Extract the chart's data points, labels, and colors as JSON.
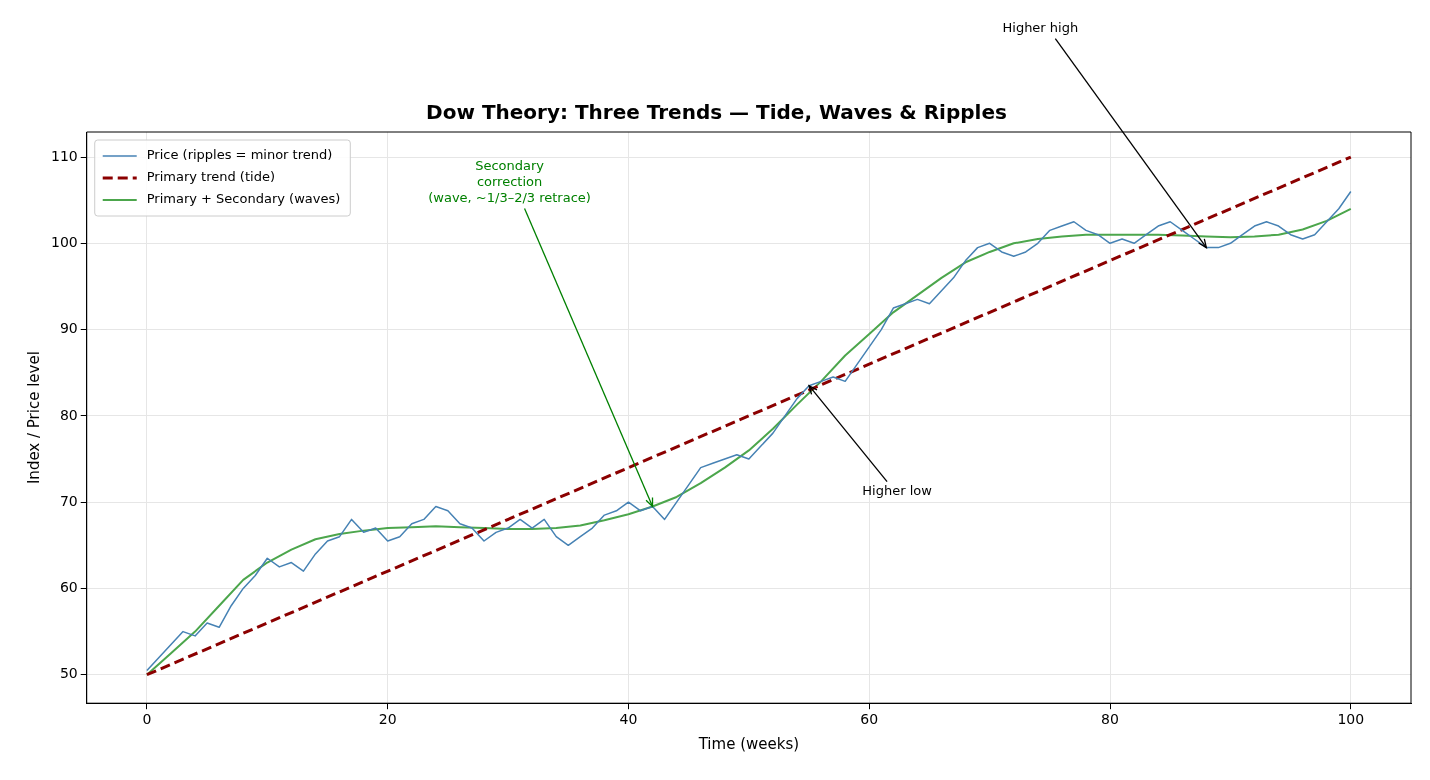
{
  "chart_data": {
    "type": "line",
    "title": "Dow Theory: Three Trends — Tide, Waves & Ripples",
    "xlabel": "Time (weeks)",
    "ylabel": "Index / Price level",
    "xlim": [
      -5,
      105
    ],
    "ylim": [
      46.7,
      112.9
    ],
    "xticks": [
      0,
      20,
      40,
      60,
      80,
      100
    ],
    "yticks": [
      50,
      60,
      70,
      80,
      90,
      100,
      110
    ],
    "grid": true,
    "legend": "top left",
    "marker": "none",
    "series": [
      {
        "name": "Price (ripples = minor trend)",
        "color": "#4682b4",
        "x": [
          0,
          1,
          2,
          3,
          4,
          5,
          6,
          7,
          8,
          9,
          10,
          11,
          12,
          13,
          14,
          15,
          16,
          17,
          18,
          19,
          20,
          21,
          22,
          23,
          24,
          25,
          26,
          27,
          28,
          29,
          30,
          31,
          32,
          33,
          34,
          35,
          36,
          37,
          38,
          39,
          40,
          41,
          42,
          43,
          44,
          45,
          46,
          47,
          48,
          49,
          50,
          51,
          52,
          53,
          54,
          55,
          56,
          57,
          58,
          59,
          60,
          61,
          62,
          63,
          64,
          65,
          66,
          67,
          68,
          69,
          70,
          71,
          72,
          73,
          74,
          75,
          76,
          77,
          78,
          79,
          80,
          81,
          82,
          83,
          84,
          85,
          86,
          87,
          88,
          89,
          90,
          91,
          92,
          93,
          94,
          95,
          96,
          97,
          98,
          99,
          100
        ],
        "values": [
          50.5,
          52,
          53.5,
          55,
          54.5,
          56,
          55.5,
          58,
          60,
          61.5,
          63.5,
          62.5,
          63,
          62,
          64,
          65.5,
          66,
          68,
          66.5,
          67,
          65.5,
          66,
          67.5,
          68,
          69.5,
          69,
          67.5,
          67,
          65.5,
          66.5,
          67,
          68,
          67,
          68,
          66,
          65,
          66,
          67,
          68.5,
          69,
          70,
          69,
          69.5,
          68,
          70,
          72,
          74,
          74.5,
          75,
          75.5,
          75,
          76.5,
          78,
          80,
          82,
          83.5,
          84,
          84.5,
          84,
          86,
          88,
          90,
          92.5,
          93,
          93.5,
          93,
          94.5,
          96,
          98,
          99.5,
          100,
          99,
          98.5,
          99,
          100,
          101.5,
          102,
          102.5,
          101.5,
          101,
          100,
          100.5,
          100,
          101,
          102,
          102.5,
          101.5,
          100.5,
          99.5,
          99.5,
          100,
          101,
          102,
          102.5,
          102,
          101,
          100.5,
          101,
          102.5,
          104,
          106
        ]
      },
      {
        "name": "Primary trend (tide)",
        "color": "#8b0000",
        "line_style": "dashed",
        "x": [
          0,
          100
        ],
        "values": [
          50,
          110
        ]
      },
      {
        "name": "Primary + Secondary (waves)",
        "color": "#4ca64c",
        "x": [
          0,
          2,
          4,
          6,
          8,
          10,
          12,
          14,
          16,
          18,
          20,
          22,
          24,
          26,
          28,
          30,
          32,
          34,
          36,
          38,
          40,
          42,
          44,
          46,
          48,
          50,
          52,
          54,
          56,
          58,
          60,
          62,
          64,
          66,
          68,
          70,
          72,
          74,
          76,
          78,
          80,
          82,
          84,
          86,
          88,
          90,
          92,
          94,
          96,
          98,
          100
        ],
        "values": [
          50,
          52.5,
          55,
          58,
          61,
          63,
          64.5,
          65.7,
          66.3,
          66.7,
          67,
          67.1,
          67.2,
          67.1,
          67,
          66.9,
          66.9,
          67,
          67.3,
          67.9,
          68.6,
          69.5,
          70.6,
          72.2,
          74,
          76,
          78.5,
          81.3,
          84,
          87,
          89.5,
          92,
          94,
          96,
          97.8,
          99,
          100,
          100.5,
          100.8,
          101,
          101,
          101,
          101,
          100.9,
          100.8,
          100.7,
          100.8,
          101,
          101.6,
          102.6,
          104
        ]
      }
    ],
    "annotations": [
      {
        "text": "Secondary\ncorrection\n(wave, ~1/3–2/3 retrace)",
        "x": 42,
        "y": 69.5
      },
      {
        "text": "Higher low",
        "x": 55,
        "y": 83.5
      },
      {
        "text": "Higher high",
        "x": 88,
        "y": 99.5
      }
    ]
  }
}
